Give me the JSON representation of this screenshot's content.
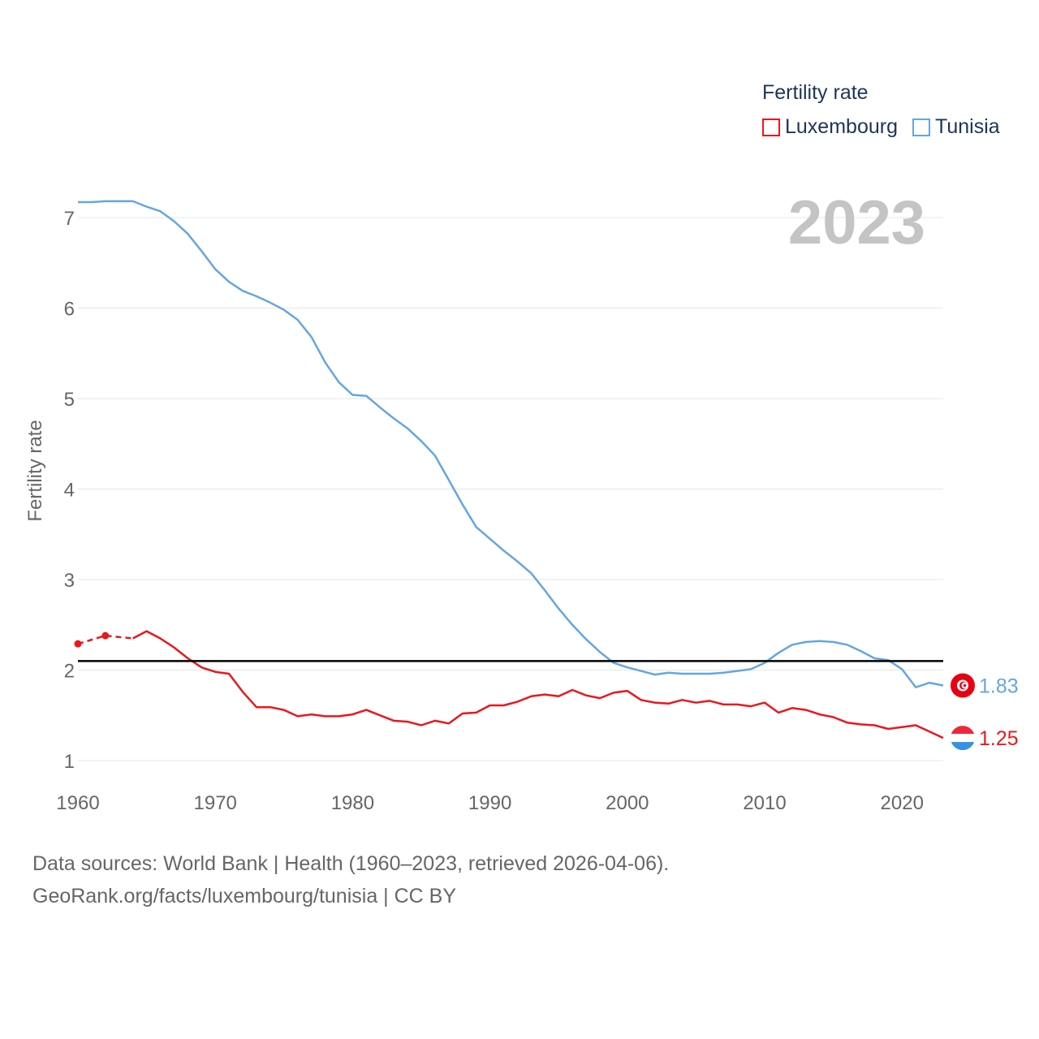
{
  "legend": {
    "title": "Fertility rate"
  },
  "footer": {
    "line1": "Data sources: World Bank | Health (1960–2023, retrieved 2026-04-06).",
    "line2": "GeoRank.org/facts/luxembourg/tunisia | CC BY"
  },
  "chart_data": {
    "type": "line",
    "year_label": "2023",
    "ylabel": "Fertility rate",
    "xlim": [
      1960,
      2023
    ],
    "ylim": [
      1,
      7
    ],
    "yticks": [
      1,
      2,
      3,
      4,
      5,
      6,
      7
    ],
    "xticks": [
      1960,
      1970,
      1980,
      1990,
      2000,
      2010,
      2020
    ],
    "reference_line": 2.1,
    "series": [
      {
        "name": "Luxembourg",
        "color": "#e8181d",
        "end_label": "1.25",
        "flag": "luxembourg-flag",
        "estimated_points": [
          [
            1960,
            2.29
          ],
          [
            1962,
            2.38
          ],
          [
            1964,
            2.35
          ]
        ],
        "x": [
          1964,
          1965,
          1966,
          1967,
          1968,
          1969,
          1970,
          1971,
          1972,
          1973,
          1974,
          1975,
          1976,
          1977,
          1978,
          1979,
          1980,
          1981,
          1982,
          1983,
          1984,
          1985,
          1986,
          1987,
          1988,
          1989,
          1990,
          1991,
          1992,
          1993,
          1994,
          1995,
          1996,
          1997,
          1998,
          1999,
          2000,
          2001,
          2002,
          2003,
          2004,
          2005,
          2006,
          2007,
          2008,
          2009,
          2010,
          2011,
          2012,
          2013,
          2014,
          2015,
          2016,
          2017,
          2018,
          2019,
          2020,
          2021,
          2022,
          2023
        ],
        "values": [
          2.35,
          2.43,
          2.35,
          2.25,
          2.13,
          2.03,
          1.98,
          1.96,
          1.76,
          1.59,
          1.59,
          1.56,
          1.49,
          1.51,
          1.49,
          1.49,
          1.51,
          1.56,
          1.5,
          1.44,
          1.43,
          1.39,
          1.44,
          1.41,
          1.52,
          1.53,
          1.61,
          1.61,
          1.65,
          1.71,
          1.73,
          1.71,
          1.78,
          1.72,
          1.69,
          1.75,
          1.77,
          1.67,
          1.64,
          1.63,
          1.67,
          1.64,
          1.66,
          1.62,
          1.62,
          1.6,
          1.64,
          1.53,
          1.58,
          1.56,
          1.51,
          1.48,
          1.42,
          1.4,
          1.39,
          1.35,
          1.37,
          1.39,
          1.32,
          1.25
        ]
      },
      {
        "name": "Tunisia",
        "color": "#64a6e2",
        "end_label": "1.83",
        "flag": "tunisia-flag",
        "x": [
          1960,
          1961,
          1962,
          1963,
          1964,
          1965,
          1966,
          1967,
          1968,
          1969,
          1970,
          1971,
          1972,
          1973,
          1974,
          1975,
          1976,
          1977,
          1978,
          1979,
          1980,
          1981,
          1982,
          1983,
          1984,
          1985,
          1986,
          1987,
          1988,
          1989,
          1990,
          1991,
          1992,
          1993,
          1994,
          1995,
          1996,
          1997,
          1998,
          1999,
          2000,
          2001,
          2002,
          2003,
          2004,
          2005,
          2006,
          2007,
          2008,
          2009,
          2010,
          2011,
          2012,
          2013,
          2014,
          2015,
          2016,
          2017,
          2018,
          2019,
          2020,
          2021,
          2022,
          2023
        ],
        "values": [
          7.17,
          7.17,
          7.18,
          7.18,
          7.18,
          7.12,
          7.07,
          6.96,
          6.82,
          6.63,
          6.43,
          6.29,
          6.19,
          6.13,
          6.06,
          5.98,
          5.87,
          5.68,
          5.4,
          5.18,
          5.04,
          5.03,
          4.9,
          4.78,
          4.67,
          4.53,
          4.37,
          4.1,
          3.83,
          3.58,
          3.45,
          3.32,
          3.2,
          3.07,
          2.88,
          2.68,
          2.5,
          2.34,
          2.2,
          2.08,
          2.03,
          1.99,
          1.95,
          1.97,
          1.96,
          1.96,
          1.96,
          1.97,
          1.99,
          2.01,
          2.08,
          2.19,
          2.28,
          2.31,
          2.32,
          2.31,
          2.28,
          2.21,
          2.13,
          2.11,
          2.01,
          1.81,
          1.86,
          1.83
        ]
      }
    ]
  }
}
